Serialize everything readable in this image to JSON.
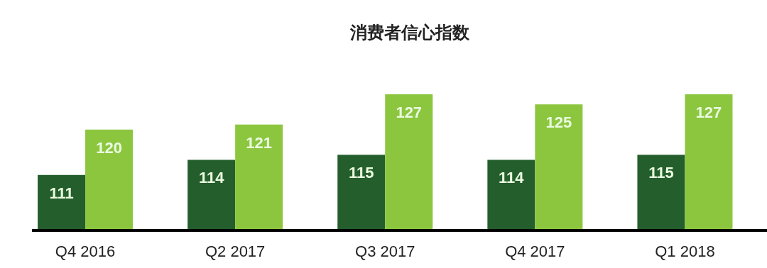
{
  "chart_data": {
    "type": "bar",
    "title": "消费者信心指数",
    "categories": [
      "Q4 2016",
      "Q2 2017",
      "Q3 2017",
      "Q4 2017",
      "Q1 2018"
    ],
    "series": [
      {
        "color": "#245e2c",
        "values": [
          111,
          114,
          115,
          114,
          115
        ]
      },
      {
        "color": "#8cc63f",
        "values": [
          120,
          121,
          127,
          125,
          127
        ]
      }
    ],
    "ylim": [
      100,
      127
    ],
    "data_labels": true,
    "tick_labels": "x"
  }
}
